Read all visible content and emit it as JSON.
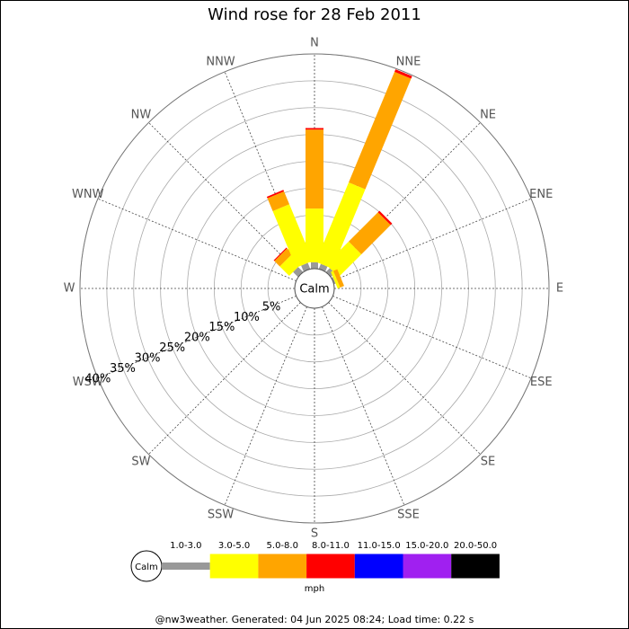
{
  "chart_data": {
    "type": "windrose",
    "title": "Wind rose for 28 Feb 2011",
    "categories": [
      "N",
      "NNE",
      "NE",
      "ENE",
      "E",
      "ESE",
      "SE",
      "SSE",
      "S",
      "SSW",
      "SW",
      "WSW",
      "W",
      "WNW",
      "NW",
      "NNW"
    ],
    "calm_label": "Calm",
    "unit": "mph",
    "series": [
      {
        "name": "1.0-3.0",
        "color": "#999999",
        "values": [
          1.2,
          1,
          1,
          0.3,
          0,
          0,
          0,
          0,
          0,
          0,
          0,
          0,
          0,
          0,
          1.3,
          1.2
        ]
      },
      {
        "name": "3.0-5.0",
        "color": "#ffff00",
        "values": [
          10,
          16,
          6,
          0.5,
          0,
          0,
          0,
          0,
          0,
          0,
          0,
          0,
          0,
          0,
          2.5,
          11.4
        ]
      },
      {
        "name": "5.0-8.0",
        "color": "#ffa500",
        "values": [
          14.7,
          22.3,
          7.7,
          0.8,
          0,
          0,
          0,
          0,
          0,
          0,
          0,
          0,
          0,
          0,
          1.4,
          2.6
        ]
      },
      {
        "name": "8.0-11.0",
        "color": "#ff0000",
        "values": [
          0.3,
          0.5,
          0.4,
          0,
          0,
          0,
          0,
          0,
          0,
          0,
          0,
          0,
          0,
          0,
          0.2,
          0.3
        ]
      },
      {
        "name": "11.0-15.0",
        "color": "#0000ff",
        "values": [
          0,
          0,
          0,
          0,
          0,
          0,
          0,
          0,
          0,
          0,
          0,
          0,
          0,
          0,
          0,
          0
        ]
      },
      {
        "name": "15.0-20.0",
        "color": "#a020f0",
        "values": [
          0,
          0,
          0,
          0,
          0,
          0,
          0,
          0,
          0,
          0,
          0,
          0,
          0,
          0,
          0,
          0
        ]
      },
      {
        "name": "20.0-50.0",
        "color": "#000000",
        "values": [
          0,
          0,
          0,
          0,
          0,
          0,
          0,
          0,
          0,
          0,
          0,
          0,
          0,
          0,
          0,
          0
        ]
      }
    ],
    "ylim": [
      0,
      40
    ],
    "yticks": [
      {
        "value": 5,
        "label": "5%"
      },
      {
        "value": 10,
        "label": "10%"
      },
      {
        "value": 15,
        "label": "15%"
      },
      {
        "value": 20,
        "label": "20%"
      },
      {
        "value": 25,
        "label": "25%"
      },
      {
        "value": 30,
        "label": "30%"
      },
      {
        "value": 35,
        "label": "35%"
      },
      {
        "value": 40,
        "label": "40%"
      }
    ],
    "footer": "@nw3weather. Generated: 04 Jun 2025 08:24; Load time: 0.22 s"
  }
}
